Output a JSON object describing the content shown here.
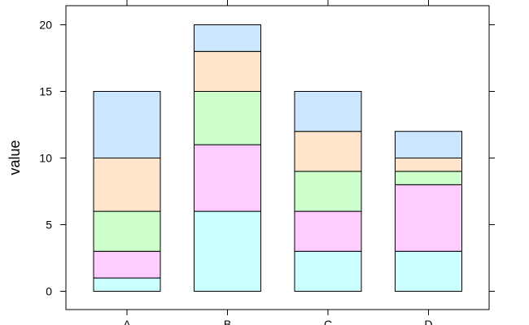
{
  "chart_data": {
    "type": "bar",
    "stacked": true,
    "categories": [
      "A",
      "B",
      "C",
      "D"
    ],
    "ylabel": "value",
    "xlabel": "",
    "ylim": [
      -1,
      21
    ],
    "yticks": [
      0,
      5,
      10,
      15,
      20
    ],
    "grid": false,
    "legend": "none",
    "series": [
      {
        "color": "#ccffff",
        "values": [
          1,
          6,
          3,
          3
        ]
      },
      {
        "color": "#ffccff",
        "values": [
          2,
          5,
          3,
          5
        ]
      },
      {
        "color": "#ccffcc",
        "values": [
          3,
          4,
          3,
          1
        ]
      },
      {
        "color": "#ffe5cc",
        "values": [
          4,
          3,
          3,
          1
        ]
      },
      {
        "color": "#cce6ff",
        "values": [
          5,
          2,
          3,
          2
        ]
      }
    ]
  }
}
